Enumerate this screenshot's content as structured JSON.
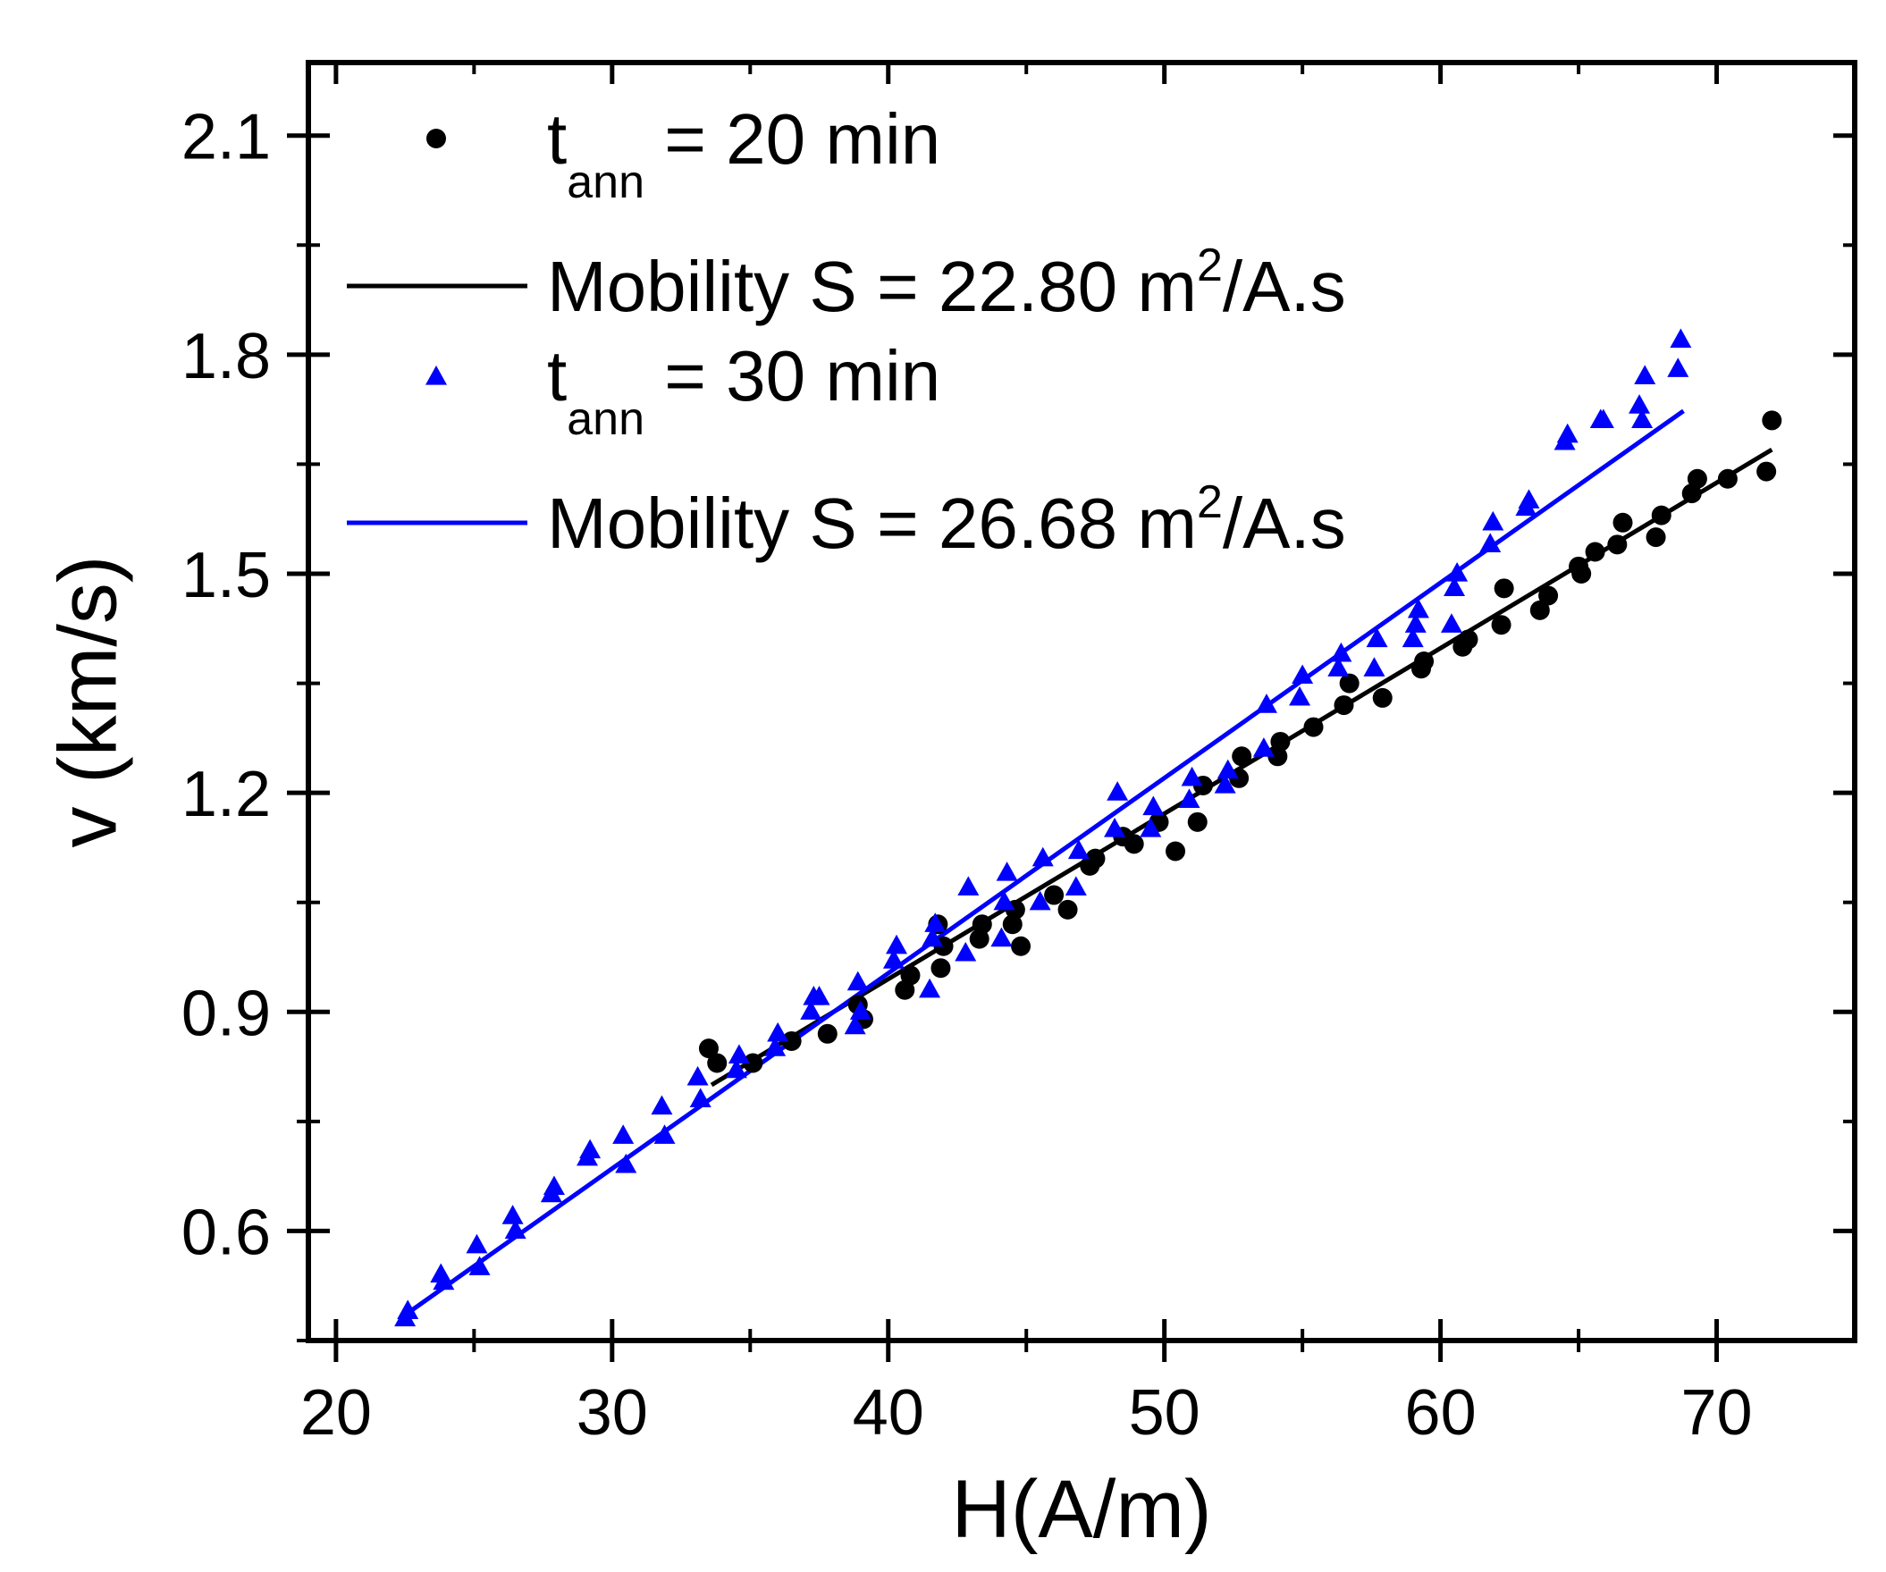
{
  "chart_data": {
    "type": "scatter",
    "title": "",
    "xlabel": "H(A/m)",
    "ylabel": "v (km/s)",
    "xlim": [
      19,
      75
    ],
    "ylim": [
      0.45,
      2.2
    ],
    "xticks": [
      20,
      30,
      40,
      50,
      60,
      70
    ],
    "xtick_labels": [
      "20",
      "30",
      "40",
      "50",
      "60",
      "70"
    ],
    "yticks": [
      0.6,
      0.9,
      1.2,
      1.5,
      1.8,
      2.1
    ],
    "ytick_labels": [
      "0.6",
      "0.9",
      "1.2",
      "1.5",
      "1.8",
      "2.1"
    ],
    "grid": false,
    "legend_position": "top-left",
    "legend": [
      {
        "kind": "marker",
        "marker": "circle",
        "color": "#000000",
        "symbol": "t",
        "subscript": "ann",
        "text": " = 20 min"
      },
      {
        "kind": "line",
        "color": "#000000",
        "text": "Mobility S = 22.80 m",
        "superscript": "2",
        "suffix": "/A.s"
      },
      {
        "kind": "marker",
        "marker": "triangle",
        "color": "#0000ff",
        "symbol": "t",
        "subscript": "ann",
        "text": " = 30 min"
      },
      {
        "kind": "line",
        "color": "#0000ff",
        "text": "Mobility S = 26.68 m",
        "superscript": "2",
        "suffix": "/A.s"
      }
    ],
    "series": [
      {
        "name": "tann = 20 min",
        "marker": "circle",
        "color": "#000000",
        "x": [
          33.5,
          33.8,
          35.1,
          36.5,
          37.8,
          38.9,
          39.1,
          40.6,
          40.8,
          41.8,
          41.9,
          42.0,
          43.3,
          43.4,
          44.5,
          44.6,
          44.8,
          46.0,
          46.5,
          47.3,
          47.5,
          48.5,
          48.9,
          49.8,
          50.4,
          51.2,
          51.4,
          52.7,
          52.8,
          54.1,
          54.2,
          55.4,
          56.5,
          56.7,
          57.9,
          59.3,
          59.4,
          60.8,
          61.0,
          62.2,
          62.3,
          63.6,
          63.9,
          65.0,
          65.1,
          65.6,
          66.4,
          66.6,
          67.8,
          68.0,
          69.1,
          69.3,
          70.4,
          71.8,
          72.0
        ],
        "y": [
          0.85,
          0.83,
          0.83,
          0.86,
          0.87,
          0.91,
          0.89,
          0.93,
          0.95,
          1.02,
          0.96,
          0.99,
          1.0,
          1.02,
          1.02,
          1.04,
          0.99,
          1.06,
          1.04,
          1.1,
          1.11,
          1.14,
          1.13,
          1.16,
          1.12,
          1.16,
          1.21,
          1.22,
          1.25,
          1.25,
          1.27,
          1.29,
          1.32,
          1.35,
          1.33,
          1.37,
          1.38,
          1.4,
          1.41,
          1.43,
          1.48,
          1.45,
          1.47,
          1.51,
          1.5,
          1.53,
          1.54,
          1.57,
          1.55,
          1.58,
          1.61,
          1.63,
          1.63,
          1.64,
          1.71
        ]
      },
      {
        "name": "tann = 30 min",
        "marker": "triangle",
        "color": "#0000ff",
        "x": [
          22.5,
          22.6,
          23.8,
          23.9,
          25.1,
          25.2,
          26.4,
          26.5,
          27.8,
          27.9,
          29.1,
          29.2,
          30.4,
          30.5,
          31.8,
          31.9,
          33.1,
          33.2,
          34.5,
          34.6,
          35.9,
          36.0,
          37.2,
          37.3,
          37.5,
          38.8,
          38.9,
          39.0,
          40.2,
          40.3,
          41.5,
          41.6,
          41.7,
          42.8,
          42.9,
          44.1,
          44.2,
          44.3,
          45.5,
          45.6,
          46.8,
          46.9,
          48.2,
          48.3,
          49.5,
          49.6,
          50.9,
          51.0,
          52.2,
          52.3,
          53.6,
          53.7,
          54.9,
          55.0,
          56.3,
          56.4,
          57.6,
          57.7,
          59.0,
          59.1,
          59.2,
          60.4,
          60.5,
          60.6,
          61.8,
          61.9,
          63.1,
          63.2,
          64.5,
          64.6,
          65.8,
          65.9,
          67.2,
          67.3,
          67.4,
          68.6,
          68.7
        ],
        "y": [
          0.48,
          0.49,
          0.54,
          0.53,
          0.58,
          0.55,
          0.62,
          0.6,
          0.65,
          0.66,
          0.7,
          0.71,
          0.73,
          0.69,
          0.77,
          0.73,
          0.81,
          0.78,
          0.82,
          0.84,
          0.85,
          0.87,
          0.9,
          0.92,
          0.92,
          0.88,
          0.94,
          0.9,
          0.97,
          0.99,
          0.93,
          1.0,
          1.02,
          0.98,
          1.07,
          1.0,
          1.05,
          1.09,
          1.05,
          1.11,
          1.07,
          1.12,
          1.15,
          1.2,
          1.15,
          1.18,
          1.19,
          1.22,
          1.21,
          1.23,
          1.26,
          1.32,
          1.33,
          1.36,
          1.37,
          1.39,
          1.37,
          1.41,
          1.41,
          1.43,
          1.45,
          1.43,
          1.48,
          1.5,
          1.54,
          1.57,
          1.59,
          1.6,
          1.68,
          1.69,
          1.71,
          1.71,
          1.73,
          1.71,
          1.77,
          1.78,
          1.82
        ]
      }
    ],
    "fit_lines": [
      {
        "name": "Mobility S = 22.80 m2/A.s",
        "color": "#000000",
        "x": [
          33.6,
          72.0
        ],
        "y": [
          0.8,
          1.67
        ]
      },
      {
        "name": "Mobility S = 26.68 m2/A.s",
        "color": "#0000ff",
        "x": [
          22.5,
          68.8
        ],
        "y": [
          0.485,
          1.723
        ]
      }
    ]
  }
}
